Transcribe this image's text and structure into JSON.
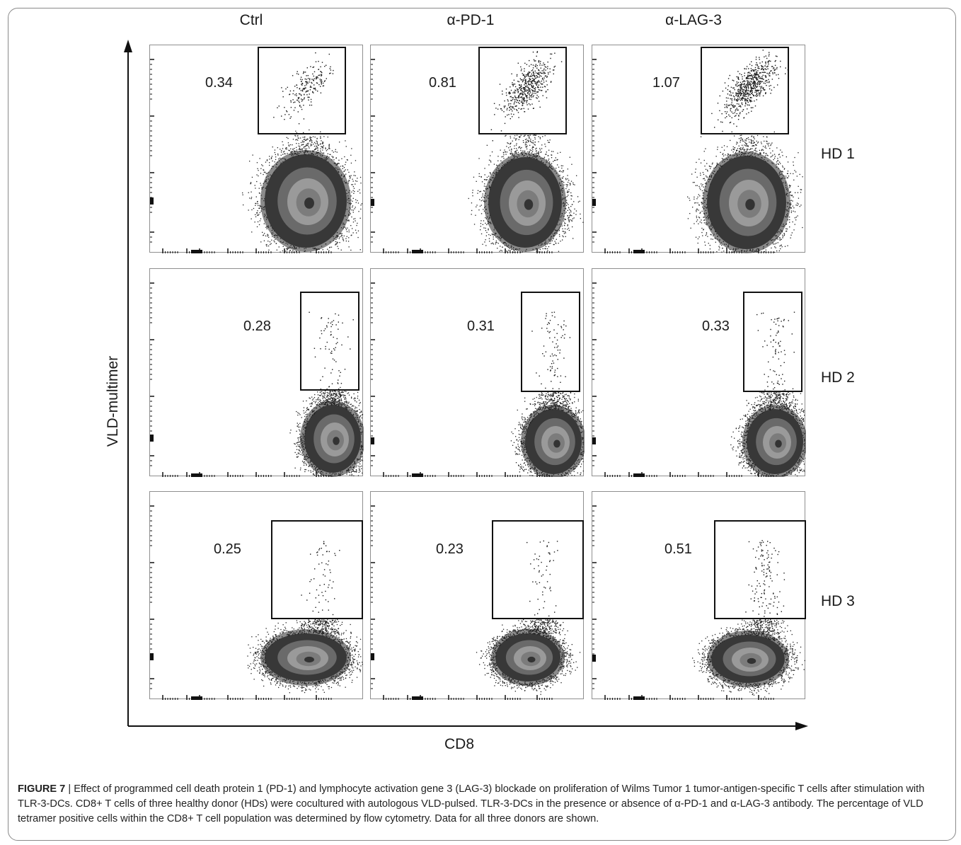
{
  "figure": {
    "column_labels": [
      "Ctrl",
      "α-PD-1",
      "α-LAG-3"
    ],
    "row_labels": [
      "HD 1",
      "HD 2",
      "HD 3"
    ],
    "x_axis_label": "CD8",
    "y_axis_label": "VLD-multimer",
    "caption_label": "FIGURE 7",
    "caption_text": "| Effect of programmed cell death protein 1 (PD-1) and lymphocyte activation gene 3 (LAG-3) blockade on proliferation of Wilms Tumor 1 tumor-antigen-specific T cells after stimulation with TLR-3-DCs. CD8+ T cells of three healthy donor (HDs) were cocultured with autologous VLD-pulsed. TLR-3-DCs in the presence or absence of α-PD-1 and α-LAG-3 antibody. The percentage of VLD tetramer positive cells within the CD8+ T cell population was determined by flow cytometry. Data for all three donors are shown."
  },
  "chart_data": {
    "type": "scatter",
    "xlabel": "CD8",
    "ylabel": "VLD-multimer",
    "columns": [
      "Ctrl",
      "α-PD-1",
      "α-LAG-3"
    ],
    "rows": [
      "HD 1",
      "HD 2",
      "HD 3"
    ],
    "gate_percentages": [
      [
        0.34,
        0.81,
        1.07
      ],
      [
        0.28,
        0.31,
        0.33
      ],
      [
        0.25,
        0.23,
        0.51
      ]
    ],
    "gate_percentage_labels": [
      [
        "0.34",
        "0.81",
        "1.07"
      ],
      [
        "0.28",
        "0.31",
        "0.33"
      ],
      [
        "0.25",
        "0.23",
        "0.51"
      ]
    ]
  }
}
